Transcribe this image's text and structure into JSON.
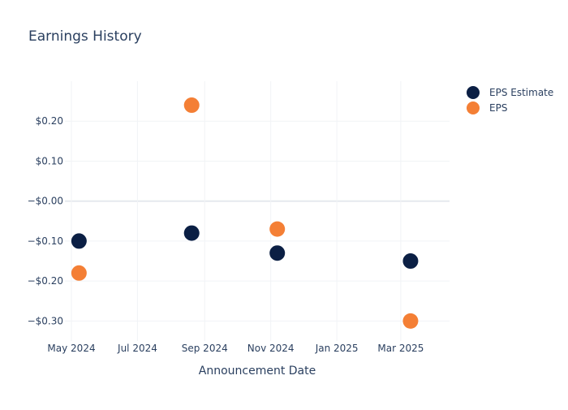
{
  "chart_data": {
    "type": "scatter",
    "title": "Earnings History",
    "xlabel": "Announcement Date",
    "ylabel": "",
    "x_ticks": [
      {
        "date": "2024-05-01",
        "label": "May 2024"
      },
      {
        "date": "2024-07-01",
        "label": "Jul 2024"
      },
      {
        "date": "2024-09-01",
        "label": "Sep 2024"
      },
      {
        "date": "2024-11-01",
        "label": "Nov 2024"
      },
      {
        "date": "2025-01-01",
        "label": "Jan 2025"
      },
      {
        "date": "2025-03-01",
        "label": "Mar 2025"
      }
    ],
    "x_range": [
      "2024-04-25",
      "2025-04-15"
    ],
    "y_ticks": [
      {
        "value": 0.2,
        "label": "$0.20"
      },
      {
        "value": 0.1,
        "label": "$0.10"
      },
      {
        "value": 0.0,
        "label": "−$0.00"
      },
      {
        "value": -0.1,
        "label": "−$0.10"
      },
      {
        "value": -0.2,
        "label": "−$0.20"
      },
      {
        "value": -0.3,
        "label": "−$0.30"
      }
    ],
    "ylim": [
      -0.35,
      0.3
    ],
    "legend_position": "top-right",
    "series": [
      {
        "name": "EPS Estimate",
        "color": "#0b1f44",
        "points": [
          {
            "x": "2024-05-08",
            "y": -0.1
          },
          {
            "x": "2024-08-20",
            "y": -0.08
          },
          {
            "x": "2024-11-07",
            "y": -0.13
          },
          {
            "x": "2025-03-10",
            "y": -0.15
          }
        ]
      },
      {
        "name": "EPS",
        "color": "#f47f35",
        "points": [
          {
            "x": "2024-05-08",
            "y": -0.18
          },
          {
            "x": "2024-08-20",
            "y": 0.24
          },
          {
            "x": "2024-11-07",
            "y": -0.07
          },
          {
            "x": "2025-03-10",
            "y": -0.3
          }
        ]
      }
    ]
  }
}
